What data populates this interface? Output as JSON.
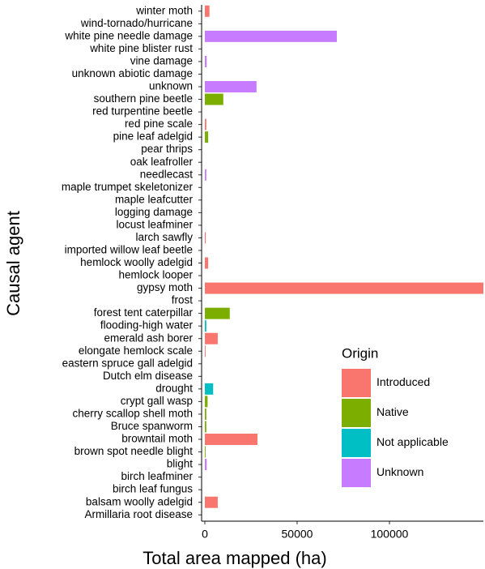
{
  "chart_data": {
    "type": "barh",
    "categories": [
      "winter moth",
      "wind-tornado/hurricane",
      "white pine needle damage",
      "white pine blister rust",
      "vine damage",
      "unknown abiotic damage",
      "unknown",
      "southern pine beetle",
      "red turpentine beetle",
      "red pine scale",
      "pine leaf adelgid",
      "pear thrips",
      "oak leafroller",
      "needlecast",
      "maple trumpet skeletonizer",
      "maple leafcutter",
      "logging damage",
      "locust leafminer",
      "larch sawfly",
      "imported willow leaf beetle",
      "hemlock woolly adelgid",
      "hemlock looper",
      "gypsy moth",
      "frost",
      "forest tent caterpillar",
      "flooding-high water",
      "emerald ash borer",
      "elongate hemlock scale",
      "eastern spruce gall adelgid",
      "Dutch elm disease",
      "drought",
      "crypt gall wasp",
      "cherry scallop shell moth",
      "Bruce spanworm",
      "browntail moth",
      "brown spot needle blight",
      "blight",
      "birch leafminer",
      "birch leaf fungus",
      "balsam woolly adelgid",
      "Armillaria root disease"
    ],
    "series": [
      {
        "name": "Introduced",
        "color": "#F8766D",
        "values": [
          2500,
          null,
          null,
          0,
          null,
          null,
          null,
          null,
          null,
          800,
          null,
          0,
          null,
          null,
          null,
          null,
          null,
          null,
          500,
          0,
          1800,
          null,
          150900,
          null,
          null,
          null,
          7000,
          400,
          0,
          0,
          null,
          null,
          null,
          null,
          28500,
          null,
          null,
          0,
          null,
          7000,
          null
        ]
      },
      {
        "name": "Native",
        "color": "#7CAE00",
        "values": [
          null,
          null,
          null,
          null,
          null,
          null,
          null,
          10000,
          0,
          null,
          1800,
          null,
          0,
          null,
          0,
          0,
          null,
          0,
          null,
          null,
          null,
          0,
          null,
          null,
          13500,
          null,
          null,
          null,
          null,
          null,
          null,
          1500,
          800,
          800,
          null,
          400,
          null,
          null,
          null,
          null,
          0
        ]
      },
      {
        "name": "Not applicable",
        "color": "#00BFC4",
        "values": [
          null,
          0,
          null,
          null,
          null,
          0,
          null,
          null,
          null,
          null,
          null,
          null,
          null,
          null,
          null,
          null,
          0,
          null,
          null,
          null,
          null,
          null,
          null,
          0,
          null,
          800,
          null,
          null,
          null,
          null,
          4500,
          null,
          null,
          null,
          null,
          null,
          null,
          null,
          null,
          null,
          null
        ]
      },
      {
        "name": "Unknown",
        "color": "#C77CFF",
        "values": [
          null,
          null,
          71500,
          null,
          1000,
          null,
          28000,
          null,
          null,
          null,
          null,
          null,
          null,
          800,
          null,
          null,
          null,
          null,
          null,
          null,
          null,
          null,
          null,
          null,
          null,
          null,
          null,
          null,
          null,
          null,
          null,
          null,
          null,
          null,
          null,
          null,
          1000,
          null,
          0,
          null,
          null
        ]
      }
    ],
    "xlabel": "Total area mapped (ha)",
    "ylabel": "Causal agent",
    "legend_title": "Origin",
    "xlim": [
      -1750,
      150900
    ],
    "xticks": [
      0,
      50000,
      100000
    ]
  }
}
